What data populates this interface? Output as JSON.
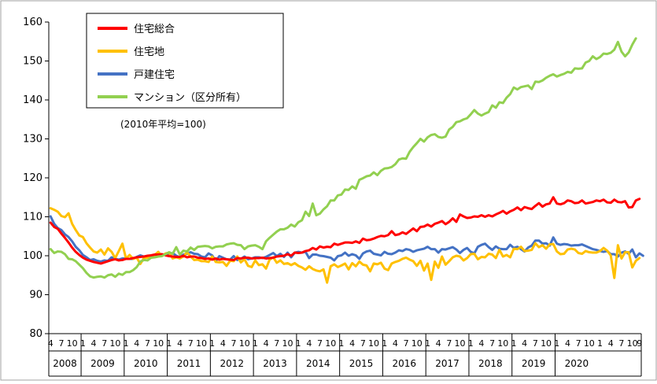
{
  "chart_data": {
    "type": "line",
    "note": "(2010年平均=100)",
    "ylim": [
      80,
      160
    ],
    "yticks": [
      80,
      90,
      100,
      110,
      120,
      130,
      140,
      150,
      160
    ],
    "grid": false,
    "legend_position": "top-left",
    "month_ticks": [
      "1",
      "4",
      "7",
      "10"
    ],
    "month_ticks_last_year": [
      "1",
      "4",
      "7",
      "9"
    ],
    "years": [
      "2008",
      "2009",
      "2010",
      "2011",
      "2012",
      "2013",
      "2014",
      "2015",
      "2016",
      "2017",
      "2018",
      "2019",
      "2020"
    ],
    "x_start": "2008-04",
    "x_end": "2020-09",
    "series": [
      {
        "name": "住宅総合",
        "color": "#ff0000",
        "values": [
          108.5,
          107.4,
          106.9,
          105.7,
          104.6,
          103.4,
          102.1,
          101.0,
          100.2,
          99.5,
          99.0,
          98.7,
          98.4,
          98.2,
          98.0,
          98.3,
          98.6,
          98.9,
          99.1,
          98.8,
          98.9,
          99.2,
          99.2,
          99.4,
          99.6,
          99.7,
          99.8,
          100.0,
          100.1,
          100.3,
          100.3,
          100.4,
          100.1,
          99.9,
          99.8,
          99.7,
          99.7,
          100.0,
          99.6,
          99.8,
          99.8,
          99.5,
          99.4,
          99.2,
          99.3,
          99.0,
          99.3,
          99.0,
          99.2,
          99.1,
          99.0,
          98.9,
          99.4,
          99.3,
          99.5,
          99.5,
          99.3,
          99.4,
          99.4,
          99.5,
          99.3,
          99.4,
          99.5,
          99.8,
          99.9,
          100.0,
          100.4,
          100.0,
          100.8,
          100.7,
          100.8,
          101.2,
          101.4,
          102.0,
          101.6,
          102.4,
          102.1,
          102.3,
          102.2,
          103.1,
          102.8,
          103.1,
          103.4,
          103.4,
          103.3,
          103.7,
          103.3,
          104.4,
          104.0,
          104.1,
          104.4,
          104.8,
          105.1,
          105.0,
          105.3,
          106.3,
          105.3,
          105.5,
          106.0,
          105.6,
          106.3,
          107.0,
          106.3,
          107.4,
          107.5,
          108.0,
          107.5,
          108.2,
          108.5,
          108.9,
          108.1,
          108.7,
          109.6,
          108.7,
          110.6,
          110.1,
          109.7,
          109.8,
          110.1,
          110.0,
          110.4,
          110.0,
          110.4,
          110.1,
          110.6,
          111.0,
          111.5,
          110.8,
          111.4,
          111.8,
          112.4,
          111.7,
          112.5,
          112.2,
          112.0,
          112.8,
          113.5,
          112.6,
          113.2,
          113.4,
          115.0,
          113.4,
          113.2,
          113.5,
          114.2,
          114.0,
          113.5,
          113.6,
          114.2,
          113.4,
          113.6,
          113.8,
          114.2,
          114.0,
          114.4,
          113.7,
          113.6,
          114.4,
          113.8,
          113.7,
          114.0,
          112.4,
          112.5,
          114.2,
          114.6
        ]
      },
      {
        "name": "住宅地",
        "color": "#ffc000",
        "values": [
          112.2,
          111.8,
          111.3,
          110.2,
          109.9,
          110.9,
          108.2,
          106.6,
          105.2,
          104.8,
          103.2,
          102.1,
          101.1,
          100.8,
          101.6,
          100.3,
          101.9,
          101.0,
          99.4,
          101.2,
          103.1,
          99.3,
          100.2,
          99.2,
          99.5,
          97.9,
          99.4,
          99.5,
          99.8,
          100.2,
          101.0,
          99.9,
          100.6,
          100.8,
          99.3,
          99.6,
          99.3,
          99.8,
          100.9,
          99.8,
          98.9,
          99.0,
          98.6,
          98.6,
          98.4,
          99.8,
          98.4,
          98.3,
          98.4,
          97.4,
          98.7,
          98.6,
          99.8,
          98.3,
          99.1,
          97.4,
          97.1,
          98.8,
          97.6,
          97.8,
          96.7,
          99.0,
          99.6,
          98.2,
          98.8,
          97.9,
          98.1,
          97.6,
          98.1,
          97.4,
          97.0,
          96.4,
          97.3,
          96.6,
          96.2,
          96.0,
          96.5,
          93.1,
          97.3,
          97.8,
          97.1,
          97.5,
          98.0,
          96.5,
          98.1,
          97.3,
          98.5,
          97.7,
          97.5,
          96.0,
          98.0,
          97.8,
          98.2,
          96.7,
          96.3,
          98.0,
          98.4,
          98.7,
          99.2,
          99.5,
          99.0,
          98.6,
          97.4,
          98.7,
          96.2,
          98.0,
          93.8,
          98.5,
          96.9,
          99.8,
          97.7,
          98.6,
          99.6,
          100.0,
          99.8,
          98.8,
          99.4,
          100.4,
          100.5,
          99.1,
          99.7,
          99.6,
          100.5,
          100.3,
          99.4,
          101.5,
          99.8,
          100.2,
          99.6,
          101.8,
          101.7,
          102.3,
          101.2,
          101.3,
          101.5,
          103.2,
          102.2,
          102.7,
          101.8,
          102.9,
          103.0,
          101.1,
          100.4,
          100.5,
          101.6,
          101.8,
          101.6,
          100.7,
          100.5,
          101.2,
          100.9,
          100.8,
          100.8,
          101.2,
          102.0,
          101.3,
          100.1,
          94.3,
          102.7,
          99.3,
          100.9,
          100.9,
          97.0,
          98.7,
          99.4
        ]
      },
      {
        "name": "戸建住宅",
        "color": "#4472c4",
        "values": [
          110.1,
          108.2,
          107.1,
          106.6,
          105.5,
          104.8,
          103.7,
          102.3,
          101.4,
          100.2,
          99.6,
          98.9,
          99.1,
          98.7,
          98.5,
          98.8,
          98.7,
          99.6,
          99.2,
          99.0,
          99.3,
          99.3,
          99.2,
          99.2,
          99.7,
          100.1,
          99.8,
          99.7,
          100.1,
          100.1,
          100.3,
          100.1,
          100.4,
          100.2,
          100.7,
          100.0,
          99.6,
          100.3,
          100.5,
          100.9,
          100.5,
          100.4,
          99.8,
          99.6,
          100.6,
          100.1,
          98.6,
          99.9,
          99.5,
          99.1,
          99.0,
          99.9,
          98.9,
          99.2,
          99.8,
          99.1,
          99.3,
          99.6,
          99.6,
          99.4,
          99.7,
          100.2,
          100.7,
          99.9,
          100.5,
          99.7,
          100.8,
          99.6,
          100.8,
          101.0,
          100.8,
          101.0,
          99.4,
          100.3,
          100.3,
          100.0,
          99.9,
          99.7,
          99.5,
          98.8,
          99.9,
          100.1,
          100.8,
          100.0,
          100.4,
          100.1,
          99.2,
          100.6,
          101.1,
          101.3,
          100.5,
          100.3,
          100.1,
          101.0,
          100.5,
          100.4,
          100.8,
          101.4,
          101.2,
          101.7,
          101.5,
          101.0,
          101.4,
          101.6,
          101.8,
          102.3,
          101.7,
          101.7,
          100.8,
          101.7,
          101.6,
          101.9,
          102.2,
          101.6,
          100.7,
          101.5,
          102.0,
          101.0,
          100.6,
          102.3,
          102.8,
          103.1,
          102.2,
          101.5,
          102.4,
          101.8,
          101.7,
          101.7,
          102.8,
          102.0,
          102.3,
          101.7,
          101.1,
          102.1,
          102.6,
          103.9,
          103.9,
          103.1,
          103.2,
          102.6,
          104.7,
          103.1,
          102.8,
          103.0,
          102.9,
          102.6,
          102.7,
          102.7,
          102.9,
          102.5,
          102.1,
          101.7,
          101.5,
          101.2,
          101.0,
          101.2,
          100.4,
          100.4,
          99.8,
          100.8,
          101.1,
          100.5,
          101.6,
          99.6,
          100.6,
          100.0
        ]
      },
      {
        "name": "マンション（区分所有）",
        "color": "#92d050",
        "values": [
          101.7,
          100.7,
          101.1,
          101.0,
          100.4,
          99.2,
          99.1,
          98.6,
          97.7,
          96.8,
          95.6,
          94.7,
          94.4,
          94.6,
          94.7,
          94.4,
          95.0,
          95.2,
          94.6,
          95.4,
          95.1,
          95.8,
          95.8,
          96.3,
          97.1,
          98.5,
          98.9,
          98.8,
          99.5,
          99.6,
          99.8,
          99.9,
          100.4,
          100.9,
          100.5,
          102.2,
          100.3,
          101.3,
          101.1,
          102.1,
          101.5,
          102.3,
          102.4,
          102.5,
          102.4,
          101.9,
          102.3,
          102.4,
          102.4,
          102.9,
          103.1,
          103.2,
          102.8,
          102.7,
          101.7,
          102.4,
          102.6,
          102.7,
          102.3,
          101.7,
          103.7,
          104.6,
          105.4,
          106.2,
          106.8,
          106.8,
          107.2,
          108.0,
          107.5,
          108.6,
          109.1,
          111.3,
          110.2,
          113.4,
          110.4,
          110.8,
          111.9,
          112.7,
          114.2,
          114.2,
          115.5,
          115.7,
          117.0,
          116.9,
          117.8,
          117.2,
          119.5,
          119.9,
          120.4,
          120.6,
          121.4,
          120.7,
          121.8,
          122.4,
          122.5,
          122.8,
          123.5,
          124.7,
          125.0,
          124.9,
          126.7,
          127.9,
          128.9,
          130.0,
          129.3,
          130.4,
          131.0,
          131.2,
          130.5,
          130.3,
          130.6,
          132.4,
          133.1,
          134.3,
          134.5,
          135.0,
          135.3,
          136.3,
          137.4,
          136.5,
          136.0,
          136.5,
          136.9,
          138.6,
          138.0,
          139.4,
          139.2,
          140.6,
          141.5,
          143.2,
          142.7,
          143.3,
          143.5,
          143.7,
          142.8,
          144.7,
          144.6,
          145.0,
          145.7,
          146.2,
          146.6,
          146.0,
          146.4,
          146.7,
          147.2,
          147.0,
          148.1,
          148.0,
          148.1,
          149.6,
          150.0,
          151.2,
          150.5,
          151.0,
          151.9,
          151.8,
          152.1,
          152.9,
          154.9,
          152.4,
          151.2,
          152.2,
          154.2,
          155.8
        ]
      }
    ]
  }
}
